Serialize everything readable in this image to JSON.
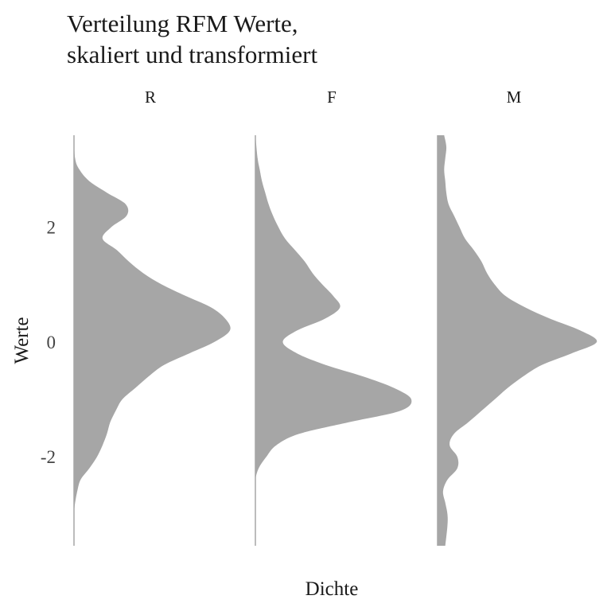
{
  "chart_data": {
    "type": "area",
    "title": [
      "Verteilung RFM Werte,",
      "skaliert und transformiert"
    ],
    "xlabel": "Dichte",
    "ylabel": "Werte",
    "ylim": [
      -3.55,
      3.6
    ],
    "yticks": [
      2,
      0,
      -2
    ],
    "ytick_labels": [
      "2",
      "0",
      "-2"
    ],
    "grid": false,
    "fill_color": "#a6a6a6",
    "facets": [
      {
        "label": "R",
        "y": [
          3.6,
          3.2,
          3.0,
          2.8,
          2.6,
          2.4,
          2.2,
          2.0,
          1.8,
          1.6,
          1.4,
          1.2,
          1.0,
          0.8,
          0.6,
          0.4,
          0.2,
          0.0,
          -0.2,
          -0.4,
          -0.6,
          -0.8,
          -1.0,
          -1.2,
          -1.4,
          -1.6,
          -1.8,
          -2.0,
          -2.2,
          -2.4,
          -2.6,
          -2.8,
          -3.0,
          -3.2,
          -3.55
        ],
        "density": [
          0.0,
          0.01,
          0.05,
          0.14,
          0.3,
          0.47,
          0.48,
          0.34,
          0.26,
          0.39,
          0.5,
          0.63,
          0.8,
          1.02,
          1.25,
          1.38,
          1.42,
          1.28,
          1.05,
          0.82,
          0.68,
          0.56,
          0.44,
          0.38,
          0.33,
          0.3,
          0.26,
          0.21,
          0.14,
          0.06,
          0.03,
          0.01,
          0.0,
          0.0,
          0.0
        ]
      },
      {
        "label": "F",
        "y": [
          3.6,
          3.2,
          3.0,
          2.8,
          2.6,
          2.4,
          2.2,
          2.0,
          1.8,
          1.6,
          1.4,
          1.2,
          1.0,
          0.8,
          0.6,
          0.4,
          0.2,
          0.0,
          -0.2,
          -0.4,
          -0.6,
          -0.8,
          -1.0,
          -1.2,
          -1.4,
          -1.6,
          -1.8,
          -2.0,
          -2.2,
          -2.4,
          -2.6,
          -2.8,
          -3.0,
          -3.2,
          -3.55
        ],
        "density": [
          0.0,
          0.02,
          0.04,
          0.06,
          0.09,
          0.12,
          0.16,
          0.21,
          0.27,
          0.36,
          0.45,
          0.52,
          0.61,
          0.71,
          0.77,
          0.63,
          0.38,
          0.25,
          0.38,
          0.64,
          0.98,
          1.26,
          1.42,
          1.32,
          0.85,
          0.4,
          0.19,
          0.1,
          0.03,
          0.0,
          0.0,
          0.0,
          0.0,
          0.0,
          0.0
        ]
      },
      {
        "label": "M",
        "y": [
          3.6,
          3.4,
          3.2,
          3.0,
          2.8,
          2.6,
          2.4,
          2.2,
          2.0,
          1.8,
          1.6,
          1.4,
          1.2,
          1.0,
          0.8,
          0.6,
          0.4,
          0.2,
          0.0,
          -0.2,
          -0.4,
          -0.6,
          -0.8,
          -1.0,
          -1.2,
          -1.4,
          -1.6,
          -1.8,
          -2.0,
          -2.2,
          -2.4,
          -2.6,
          -2.8,
          -3.0,
          -3.2,
          -3.55
        ],
        "density": [
          0.06,
          0.08,
          0.07,
          0.06,
          0.07,
          0.08,
          0.1,
          0.15,
          0.2,
          0.25,
          0.33,
          0.4,
          0.45,
          0.52,
          0.62,
          0.8,
          1.03,
          1.3,
          1.45,
          1.22,
          0.95,
          0.78,
          0.64,
          0.52,
          0.4,
          0.28,
          0.15,
          0.11,
          0.18,
          0.18,
          0.09,
          0.05,
          0.07,
          0.09,
          0.09,
          0.07
        ]
      }
    ]
  }
}
